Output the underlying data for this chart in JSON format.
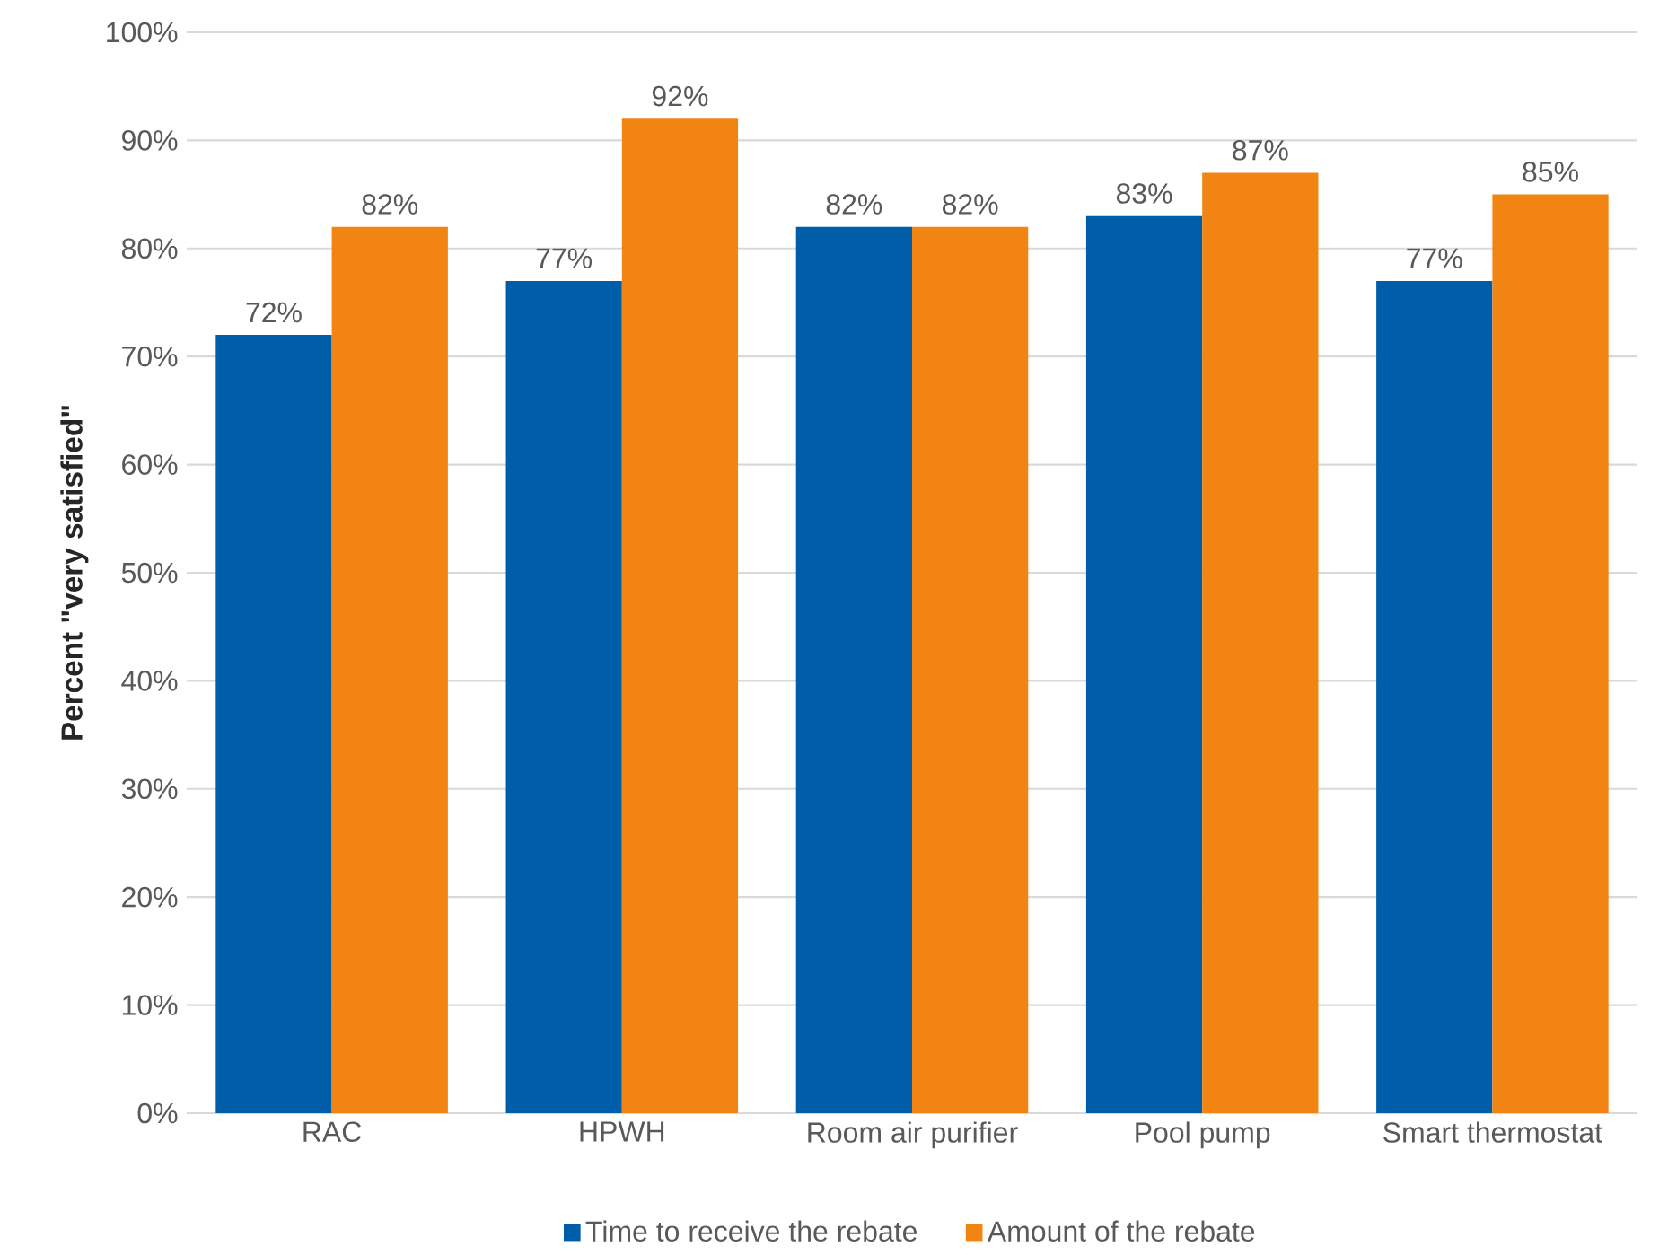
{
  "chart_data": {
    "type": "bar",
    "ylabel": "Percent \"very satisfied\"",
    "categories": [
      "RAC",
      "HPWH",
      "Room air purifier",
      "Pool pump",
      "Smart thermostat"
    ],
    "series": [
      {
        "name": "Time to receive the rebate",
        "color": "#005daa",
        "values": [
          72,
          77,
          82,
          83,
          77
        ],
        "value_labels": [
          "72%",
          "77%",
          "82%",
          "83%",
          "77%"
        ]
      },
      {
        "name": "Amount of the rebate",
        "color": "#f28413",
        "values": [
          82,
          92,
          82,
          87,
          85
        ],
        "value_labels": [
          "82%",
          "92%",
          "82%",
          "87%",
          "85%"
        ]
      }
    ],
    "ylim": [
      0,
      100
    ],
    "yticks": [
      {
        "value": 0,
        "label": "0%"
      },
      {
        "value": 10,
        "label": "10%"
      },
      {
        "value": 20,
        "label": "20%"
      },
      {
        "value": 30,
        "label": "30%"
      },
      {
        "value": 40,
        "label": "40%"
      },
      {
        "value": 50,
        "label": "50%"
      },
      {
        "value": 60,
        "label": "60%"
      },
      {
        "value": 70,
        "label": "70%"
      },
      {
        "value": 80,
        "label": "80%"
      },
      {
        "value": 90,
        "label": "90%"
      },
      {
        "value": 100,
        "label": "100%"
      }
    ],
    "grid": "y",
    "legend": "bottom"
  }
}
